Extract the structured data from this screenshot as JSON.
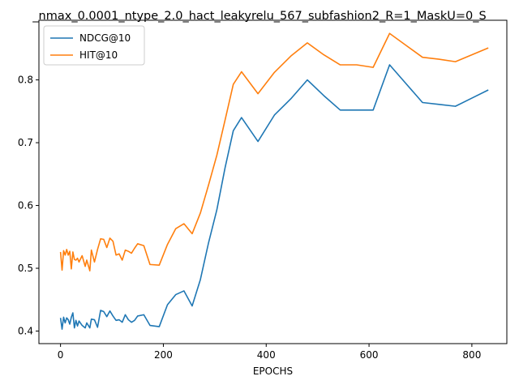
{
  "chart_data": {
    "type": "line",
    "title": "_nmax_0.0001_ntype_2.0_hact_leakyrelu_567_subfashion2_R=1_MaskU=0_S",
    "xlabel": "EPOCHS",
    "ylabel": "",
    "xlim": [
      -42,
      868
    ],
    "ylim": [
      0.38,
      0.895
    ],
    "xticks": [
      0,
      200,
      400,
      600,
      800
    ],
    "yticks": [
      0.4,
      0.5,
      0.6,
      0.7,
      0.8
    ],
    "grid": false,
    "legend_position": "top-left",
    "series": [
      {
        "name": "NDCG@10",
        "color": "#1f77b4",
        "x": [
          0,
          3,
          6,
          9,
          12,
          15,
          18,
          21,
          24,
          27,
          30,
          33,
          36,
          42,
          48,
          51,
          57,
          60,
          66,
          72,
          78,
          84,
          90,
          96,
          102,
          108,
          114,
          120,
          126,
          132,
          138,
          144,
          150,
          162,
          174,
          192,
          208,
          224,
          240,
          256,
          272,
          288,
          304,
          320,
          336,
          352,
          384,
          416,
          448,
          480,
          512,
          544,
          576,
          608,
          640,
          672,
          704,
          736,
          768,
          800,
          832
        ],
        "values": [
          0.421,
          0.403,
          0.422,
          0.413,
          0.421,
          0.418,
          0.411,
          0.422,
          0.429,
          0.405,
          0.417,
          0.408,
          0.416,
          0.409,
          0.405,
          0.413,
          0.405,
          0.419,
          0.418,
          0.406,
          0.433,
          0.431,
          0.423,
          0.432,
          0.424,
          0.417,
          0.418,
          0.414,
          0.426,
          0.418,
          0.414,
          0.417,
          0.424,
          0.426,
          0.409,
          0.407,
          0.442,
          0.458,
          0.464,
          0.44,
          0.482,
          0.541,
          0.593,
          0.66,
          0.719,
          0.74,
          0.702,
          0.744,
          0.77,
          0.8,
          0.775,
          0.752,
          0.752,
          0.752,
          0.824,
          0.794,
          0.764,
          0.761,
          0.758,
          0.771,
          0.784
        ]
      },
      {
        "name": "HIT@10",
        "color": "#ff7f0e",
        "x": [
          0,
          3,
          6,
          9,
          12,
          15,
          18,
          21,
          24,
          27,
          30,
          33,
          36,
          42,
          48,
          51,
          57,
          60,
          66,
          72,
          78,
          84,
          90,
          96,
          102,
          108,
          114,
          120,
          126,
          132,
          138,
          144,
          150,
          162,
          174,
          192,
          208,
          224,
          240,
          256,
          272,
          288,
          304,
          320,
          336,
          352,
          384,
          416,
          448,
          480,
          512,
          544,
          576,
          608,
          640,
          672,
          704,
          736,
          768,
          800,
          832
        ],
        "values": [
          0.526,
          0.497,
          0.528,
          0.521,
          0.53,
          0.521,
          0.527,
          0.499,
          0.526,
          0.514,
          0.513,
          0.516,
          0.51,
          0.52,
          0.503,
          0.513,
          0.496,
          0.529,
          0.51,
          0.53,
          0.547,
          0.546,
          0.533,
          0.548,
          0.543,
          0.521,
          0.523,
          0.513,
          0.529,
          0.527,
          0.524,
          0.532,
          0.539,
          0.536,
          0.506,
          0.505,
          0.538,
          0.563,
          0.571,
          0.555,
          0.588,
          0.633,
          0.68,
          0.736,
          0.793,
          0.813,
          0.778,
          0.812,
          0.838,
          0.859,
          0.84,
          0.824,
          0.824,
          0.82,
          0.874,
          0.855,
          0.836,
          0.833,
          0.829,
          0.84,
          0.851
        ]
      }
    ]
  }
}
